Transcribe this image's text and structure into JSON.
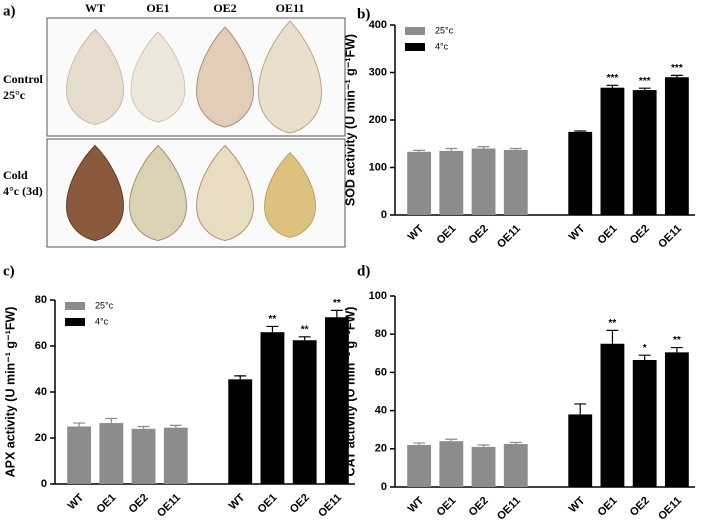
{
  "photo_panel": {
    "label": "a)",
    "columns": [
      "WT",
      "OE1",
      "OE2",
      "OE11"
    ],
    "rows": [
      [
        "Control",
        "25°c"
      ],
      [
        "Cold",
        "4°c (3d)"
      ]
    ]
  },
  "chart_data": [
    {
      "type": "bar",
      "label": "b)",
      "ylabel": "SOD activity (U min⁻¹ g⁻¹FW)",
      "categories": [
        "WT",
        "OE1",
        "OE2",
        "OE11"
      ],
      "series": [
        {
          "name": "25°c",
          "color": "#8c8c8c",
          "values": [
            133,
            135,
            140,
            137
          ],
          "errors": [
            3,
            5,
            4,
            3
          ]
        },
        {
          "name": "4°c",
          "color": "#000000",
          "values": [
            175,
            268,
            263,
            290
          ],
          "errors": [
            2,
            5,
            4,
            4
          ],
          "annotations": [
            null,
            "***",
            "***",
            "***"
          ]
        }
      ],
      "ylim": [
        0,
        400
      ],
      "yticks": [
        0,
        100,
        200,
        300,
        400
      ],
      "legend": "upper left"
    },
    {
      "type": "bar",
      "label": "c)",
      "ylabel": "APX activity (U min⁻¹ g⁻¹FW)",
      "categories": [
        "WT",
        "OE1",
        "OE2",
        "OE11"
      ],
      "series": [
        {
          "name": "25°c",
          "color": "#8c8c8c",
          "values": [
            25,
            26.5,
            24,
            24.5
          ],
          "errors": [
            1.5,
            2,
            1,
            1
          ]
        },
        {
          "name": "4°c",
          "color": "#000000",
          "values": [
            45.5,
            66,
            62.5,
            72.5
          ],
          "errors": [
            1.5,
            2.5,
            1.5,
            3
          ],
          "annotations": [
            null,
            "**",
            "**",
            "**"
          ]
        }
      ],
      "ylim": [
        0,
        80
      ],
      "yticks": [
        0,
        20,
        40,
        60,
        80
      ],
      "legend": "upper left"
    },
    {
      "type": "bar",
      "label": "d)",
      "ylabel": "CAT activity (U min⁻¹ g⁻¹FW)",
      "categories": [
        "WT",
        "OE1",
        "OE2",
        "OE11"
      ],
      "series": [
        {
          "name": "25°c",
          "color": "#8c8c8c",
          "values": [
            22,
            24,
            21,
            22.5
          ],
          "errors": [
            1,
            1,
            1,
            0.8
          ]
        },
        {
          "name": "4°c",
          "color": "#000000",
          "values": [
            38,
            75,
            66.5,
            70.5
          ],
          "errors": [
            5.5,
            7,
            2.5,
            2.5
          ],
          "annotations": [
            null,
            "**",
            "*",
            "**"
          ]
        }
      ],
      "ylim": [
        0,
        100
      ],
      "yticks": [
        0,
        20,
        40,
        60,
        80,
        100
      ],
      "legend": false
    }
  ]
}
